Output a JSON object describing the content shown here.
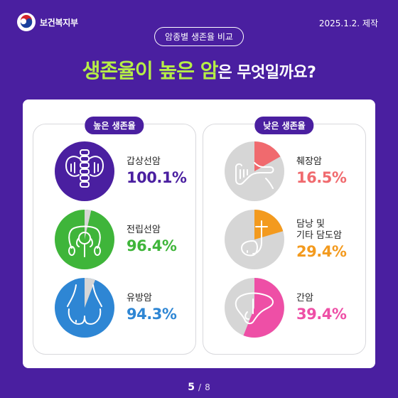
{
  "header": {
    "org_name": "보건복지부",
    "date": "2025.1.2. 제작",
    "topic_pill": "암종별 생존율 비교",
    "headline_highlight": "생존율이 높은 암",
    "headline_rest": "은 무엇일까요?"
  },
  "high_group": {
    "label": "높은 생존율",
    "items": [
      {
        "name": "갑상선암",
        "rate": "100.1%",
        "color": "#4a1fa0",
        "value": 100.1,
        "icon": "thyroid-icon"
      },
      {
        "name": "전립선암",
        "rate": "96.4%",
        "color": "#3fb53a",
        "value": 96.4,
        "icon": "prostate-icon"
      },
      {
        "name": "유방암",
        "rate": "94.3%",
        "color": "#2e86d4",
        "value": 94.3,
        "icon": "breast-icon"
      }
    ]
  },
  "low_group": {
    "label": "낮은 생존율",
    "items": [
      {
        "name": "췌장암",
        "rate": "16.5%",
        "color": "#f06a6e",
        "value": 16.5,
        "icon": "pancreas-icon"
      },
      {
        "name_line1": "담낭 및",
        "name_line2": "기타 담도암",
        "rate": "29.4%",
        "color": "#f39a1e",
        "value": 29.4,
        "icon": "gallbladder-icon"
      },
      {
        "name": "간암",
        "rate": "39.4%",
        "color": "#ee4fa6",
        "value": 39.4,
        "icon": "liver-icon"
      }
    ]
  },
  "pagination": {
    "current": "5",
    "separator": "/",
    "total": "8"
  },
  "colors": {
    "background": "#4a1fa0",
    "accent_green": "#b6ee46",
    "pie_base": "#d6d6d6"
  }
}
